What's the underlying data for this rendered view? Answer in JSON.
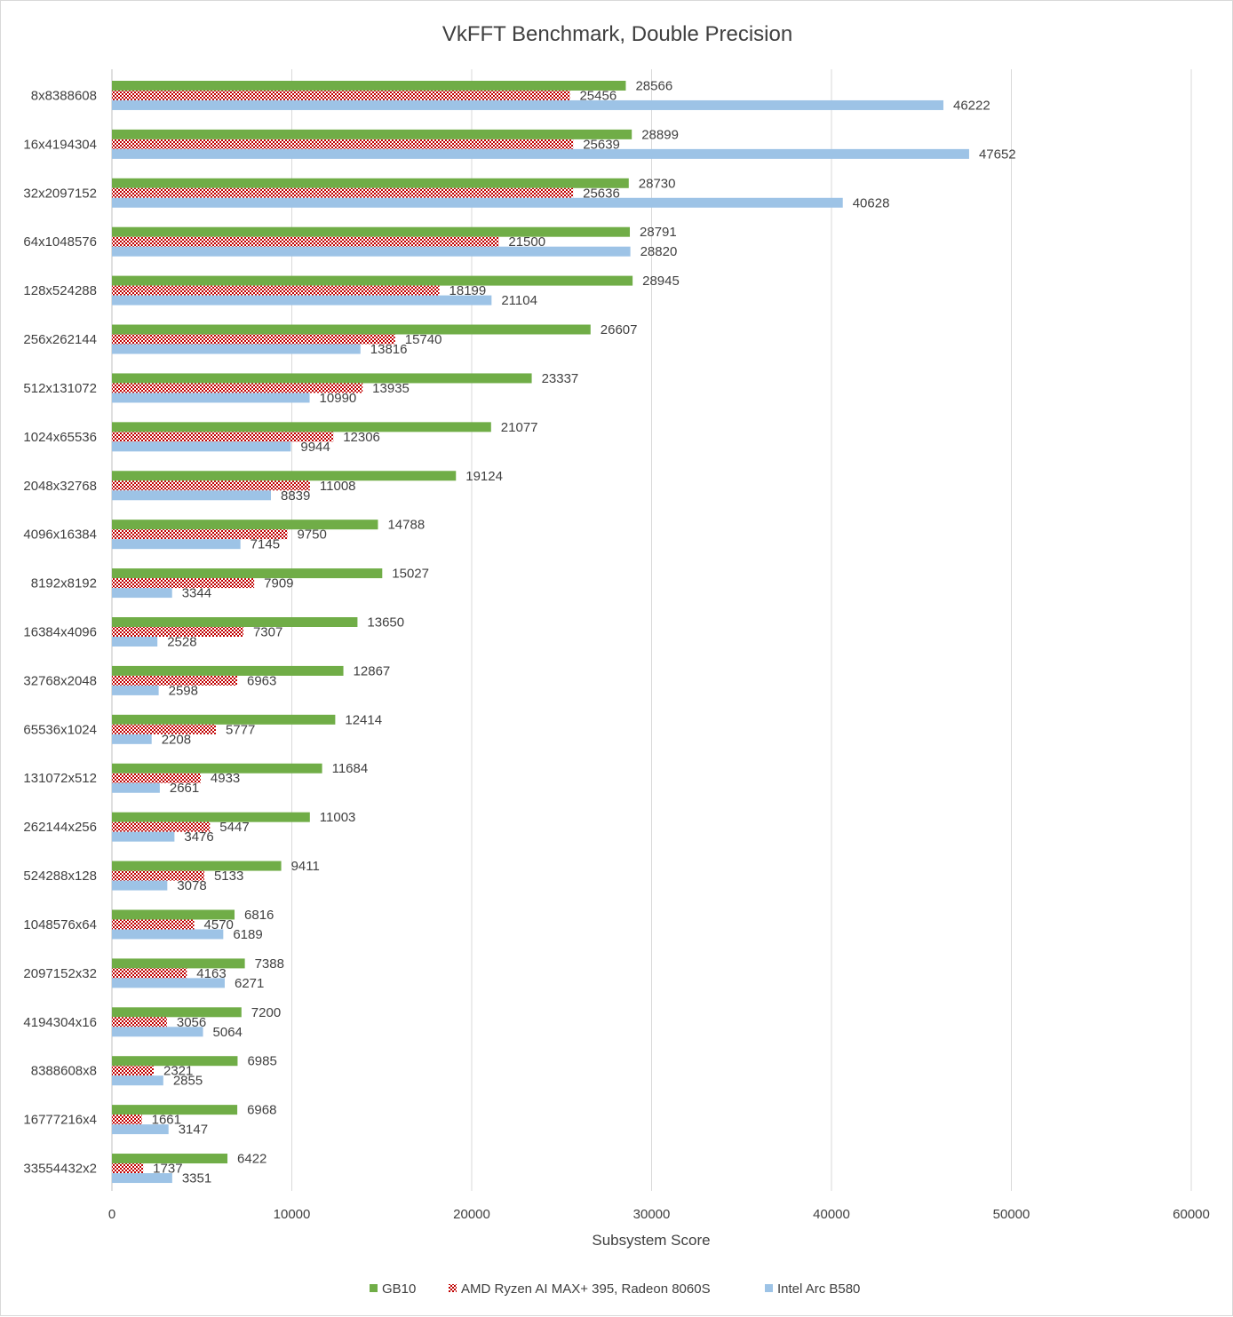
{
  "chart_data": {
    "type": "bar",
    "orientation": "horizontal",
    "title": "VkFFT Benchmark, Double Precision",
    "xlabel": "Subsystem Score",
    "ylabel": "",
    "xlim": [
      0,
      60000
    ],
    "x_ticks": [
      "0",
      "10000",
      "20000",
      "30000",
      "40000",
      "50000",
      "60000"
    ],
    "grid": "vertical",
    "legend_position": "bottom",
    "categories": [
      "8x8388608",
      "16x4194304",
      "32x2097152",
      "64x1048576",
      "128x524288",
      "256x262144",
      "512x131072",
      "1024x65536",
      "2048x32768",
      "4096x16384",
      "8192x8192",
      "16384x4096",
      "32768x2048",
      "65536x1024",
      "131072x512",
      "262144x256",
      "524288x128",
      "1048576x64",
      "2097152x32",
      "4194304x16",
      "8388608x8",
      "16777216x4",
      "33554432x2"
    ],
    "series": [
      {
        "name": "GB10",
        "color": "#70ad47",
        "pattern": "solid",
        "values": [
          28566,
          28899,
          28730,
          28791,
          28945,
          26607,
          23337,
          21077,
          19124,
          14788,
          15027,
          13650,
          12867,
          12414,
          11684,
          11003,
          9411,
          6816,
          7388,
          7200,
          6985,
          6968,
          6422
        ]
      },
      {
        "name": "AMD Ryzen AI MAX+ 395, Radeon 8060S",
        "color": "#c00000",
        "pattern": "checkered",
        "values": [
          25456,
          25639,
          25636,
          21500,
          18199,
          15740,
          13935,
          12306,
          11008,
          9750,
          7909,
          7307,
          6963,
          5777,
          4933,
          5447,
          5133,
          4570,
          4163,
          3056,
          2321,
          1661,
          1737
        ]
      },
      {
        "name": "Intel Arc B580",
        "color": "#9dc3e6",
        "pattern": "solid",
        "values": [
          46222,
          47652,
          40628,
          28820,
          21104,
          13816,
          10990,
          9944,
          8839,
          7145,
          3344,
          2528,
          2598,
          2208,
          2661,
          3476,
          3078,
          6189,
          6271,
          5064,
          2855,
          3147,
          3351
        ]
      }
    ]
  }
}
